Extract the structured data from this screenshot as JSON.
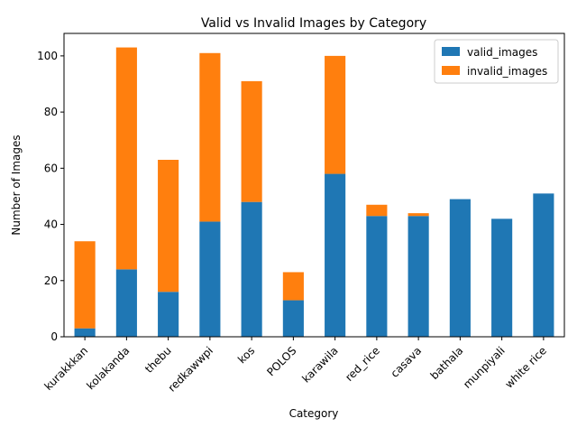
{
  "chart_data": {
    "type": "bar",
    "stacked": true,
    "title": "Valid vs Invalid Images by Category",
    "xlabel": "Category",
    "ylabel": "Number of Images",
    "categories": [
      "kurakkkan",
      "kolakanda",
      "thebu",
      "redkawwpi",
      "kos",
      "POLOS",
      "karawila",
      "red_rice",
      "casava",
      "bathala",
      "munpiyali",
      "white rice"
    ],
    "series": [
      {
        "name": "valid_images",
        "color": "#1f77b4",
        "values": [
          3,
          24,
          16,
          41,
          48,
          13,
          58,
          43,
          43,
          49,
          42,
          51
        ]
      },
      {
        "name": "invalid_images",
        "color": "#ff7f0e",
        "values": [
          31,
          79,
          47,
          60,
          43,
          10,
          42,
          4,
          1,
          0,
          0,
          0
        ]
      }
    ],
    "ylim": [
      0,
      108
    ],
    "yticks": [
      0,
      20,
      40,
      60,
      80,
      100
    ],
    "legend_position": "top-right",
    "grid": false
  }
}
